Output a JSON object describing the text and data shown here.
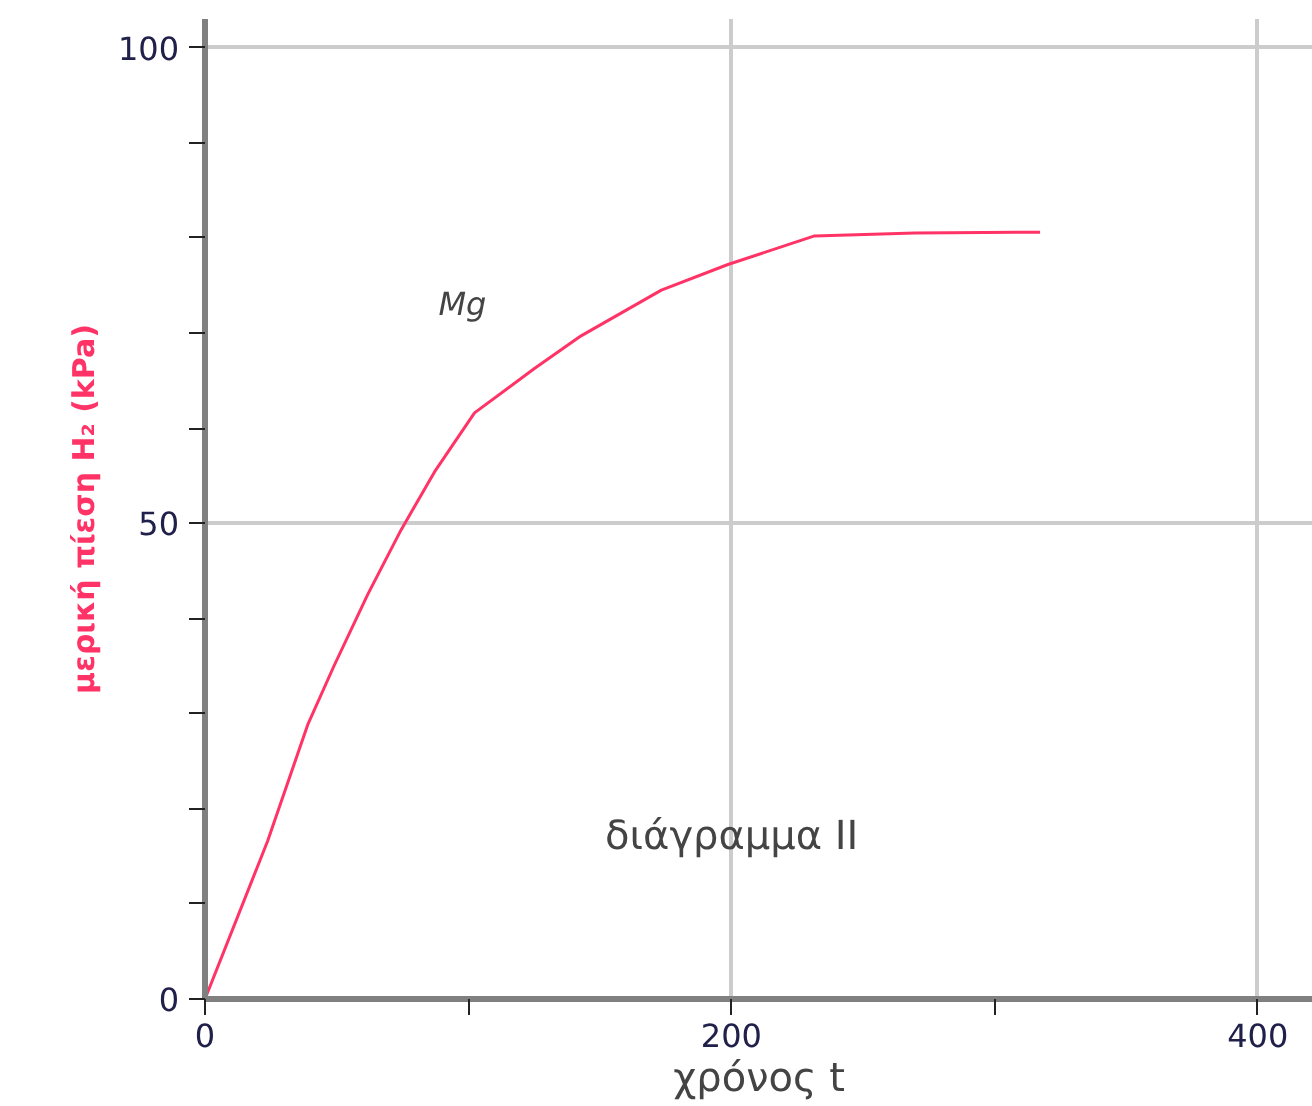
{
  "chart_data": {
    "type": "line",
    "xlabel": "χρόνος t",
    "ylabel": "μερική πίεση H₂ (kPa)",
    "annotations": [
      "διάγραμμα II"
    ],
    "x": [
      0,
      23.8,
      39,
      49,
      61.8,
      74.5,
      87.2,
      102.4,
      125.3,
      142.9,
      173.4,
      198.7,
      231.6,
      269.7,
      317.3
    ],
    "series": [
      {
        "name": "Mg",
        "color": "#ff3366",
        "values": [
          0,
          16.6,
          28.8,
          35,
          42.5,
          49.3,
          55.4,
          61.6,
          66.3,
          69.7,
          74.5,
          77.2,
          80.2,
          80.5,
          80.6
        ]
      }
    ],
    "xlim": [
      0,
      421
    ],
    "ylim": [
      0,
      103
    ],
    "xticks": [
      0,
      {
        "value": 100,
        "label": null
      },
      200,
      {
        "value": 300,
        "label": null
      },
      400
    ],
    "yticks": [
      0,
      {
        "value": 10,
        "label": null
      },
      {
        "value": 20,
        "label": null
      },
      {
        "value": 30,
        "label": null
      },
      {
        "value": 40,
        "label": null
      },
      50,
      {
        "value": 60,
        "label": null
      },
      {
        "value": 70,
        "label": null
      },
      {
        "value": 80,
        "label": null
      },
      {
        "value": 90,
        "label": null
      },
      100
    ],
    "grid": true,
    "line_style": "solid",
    "marker": "none"
  }
}
